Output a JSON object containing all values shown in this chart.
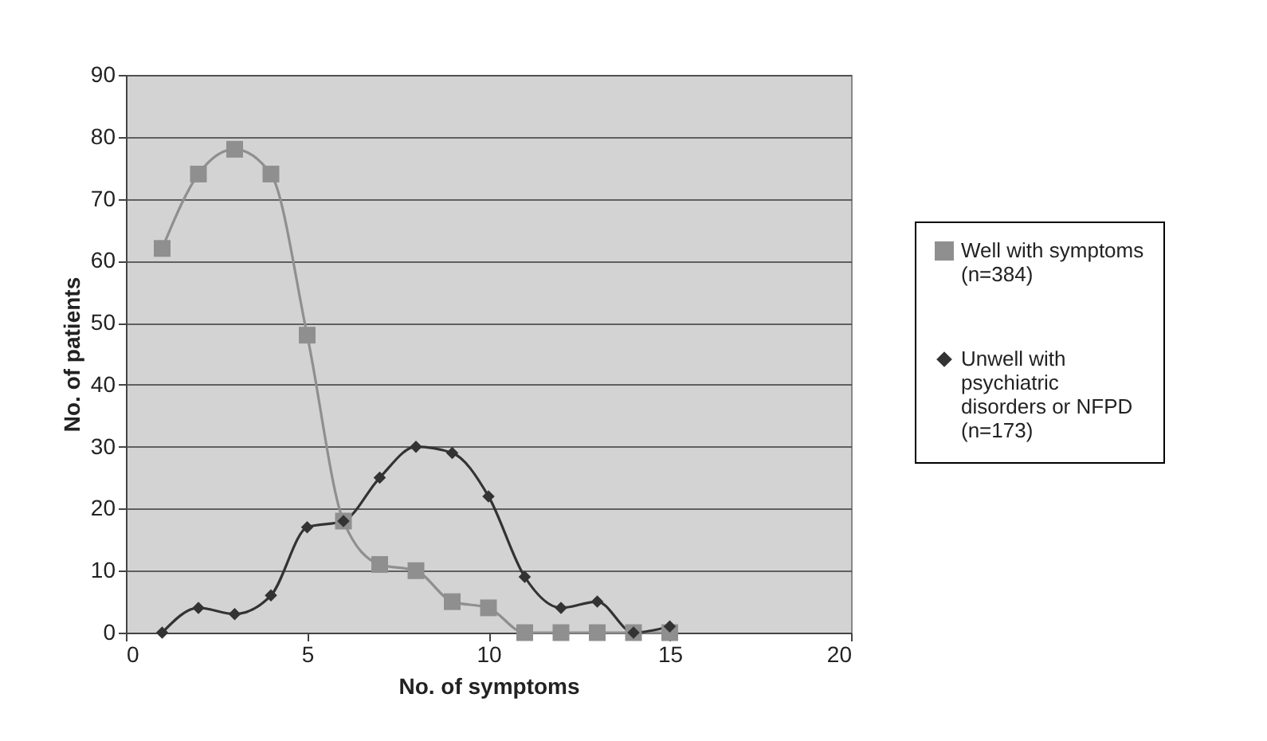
{
  "chart_data": {
    "type": "line",
    "xlabel": "No. of symptoms",
    "ylabel": "No. of patients",
    "x": [
      1,
      2,
      3,
      4,
      5,
      6,
      7,
      8,
      9,
      10,
      11,
      12,
      13,
      14,
      15
    ],
    "series": [
      {
        "name": "Well with symptoms (n=384)",
        "color": "#8f8f8f",
        "marker": "square",
        "values": [
          62,
          74,
          78,
          74,
          48,
          18,
          11,
          10,
          5,
          4,
          0,
          0,
          0,
          0,
          0
        ]
      },
      {
        "name": "Unwell with psychiatric disorders or NFPD (n=173)",
        "color": "#333333",
        "marker": "diamond",
        "values": [
          0,
          4,
          3,
          6,
          17,
          18,
          25,
          30,
          29,
          22,
          9,
          4,
          5,
          0,
          1
        ]
      }
    ],
    "xlim": [
      0,
      20
    ],
    "xticks": [
      0,
      5,
      10,
      15,
      20
    ],
    "ylim": [
      0,
      90
    ],
    "yticks": [
      0,
      10,
      20,
      30,
      40,
      50,
      60,
      70,
      80,
      90
    ],
    "grid": "y",
    "legend": "right",
    "line_style": "solid"
  }
}
